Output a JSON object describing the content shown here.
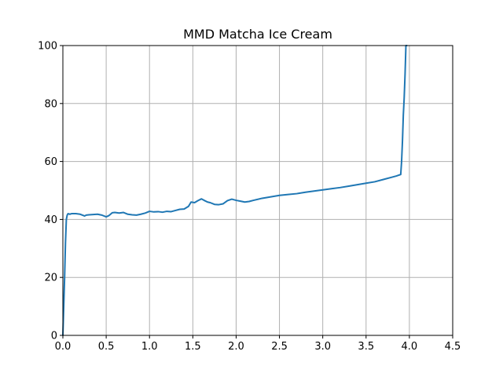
{
  "chart_data": {
    "type": "line",
    "title": "MMD Matcha Ice Cream",
    "xlabel": "",
    "ylabel": "",
    "xlim": [
      0,
      4.5
    ],
    "ylim": [
      0,
      100
    ],
    "xticks": [
      0.0,
      0.5,
      1.0,
      1.5,
      2.0,
      2.5,
      3.0,
      3.5,
      4.0,
      4.5
    ],
    "xtick_labels": [
      "0.0",
      "0.5",
      "1.0",
      "1.5",
      "2.0",
      "2.5",
      "3.0",
      "3.5",
      "4.0",
      "4.5"
    ],
    "yticks": [
      0,
      20,
      40,
      60,
      80,
      100
    ],
    "ytick_labels": [
      "0",
      "20",
      "40",
      "60",
      "80",
      "100"
    ],
    "grid": true,
    "series": [
      {
        "color": "#1f77b4",
        "x": [
          0.0,
          0.02,
          0.03,
          0.04,
          0.05,
          0.06,
          0.08,
          0.1,
          0.15,
          0.2,
          0.25,
          0.27,
          0.3,
          0.35,
          0.4,
          0.45,
          0.5,
          0.53,
          0.57,
          0.6,
          0.65,
          0.7,
          0.75,
          0.8,
          0.85,
          0.9,
          0.95,
          1.0,
          1.05,
          1.1,
          1.15,
          1.2,
          1.25,
          1.3,
          1.35,
          1.4,
          1.45,
          1.48,
          1.52,
          1.56,
          1.6,
          1.63,
          1.67,
          1.7,
          1.75,
          1.8,
          1.85,
          1.9,
          1.95,
          2.0,
          2.05,
          2.1,
          2.15,
          2.2,
          2.3,
          2.4,
          2.5,
          2.6,
          2.7,
          2.8,
          2.9,
          3.0,
          3.1,
          3.2,
          3.3,
          3.4,
          3.5,
          3.6,
          3.7,
          3.8,
          3.85,
          3.9,
          3.91,
          3.92,
          3.93,
          3.94,
          3.95,
          3.96,
          3.97
        ],
        "y": [
          0,
          20,
          32,
          40,
          41.5,
          42,
          41.8,
          42,
          42,
          41.8,
          41.2,
          41.5,
          41.6,
          41.7,
          41.8,
          41.5,
          40.9,
          41.3,
          42.3,
          42.4,
          42.2,
          42.4,
          41.8,
          41.6,
          41.5,
          41.8,
          42.2,
          42.8,
          42.6,
          42.7,
          42.5,
          42.8,
          42.7,
          43.1,
          43.5,
          43.6,
          44.5,
          46,
          45.8,
          46.5,
          47.1,
          46.6,
          46,
          45.8,
          45.2,
          45.1,
          45.4,
          46.5,
          47,
          46.6,
          46.3,
          46,
          46.2,
          46.6,
          47.3,
          47.8,
          48.3,
          48.6,
          48.9,
          49.4,
          49.8,
          50.2,
          50.6,
          51,
          51.5,
          52,
          52.5,
          53,
          53.8,
          54.6,
          55,
          55.5,
          60,
          67,
          76,
          82,
          90,
          100,
          100
        ]
      }
    ]
  }
}
